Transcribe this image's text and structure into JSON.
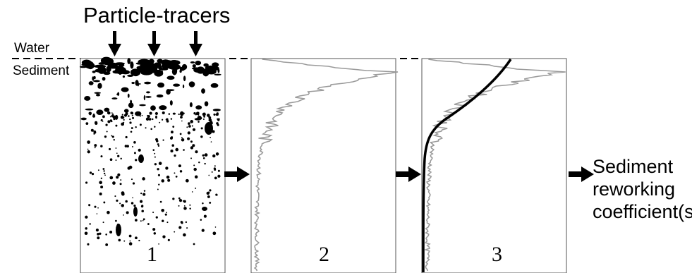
{
  "title": "Particle-tracers",
  "water_label": "Water",
  "sediment_label": "Sediment",
  "panels": [
    {
      "number": "1"
    },
    {
      "number": "2"
    },
    {
      "number": "3"
    }
  ],
  "result_lines": [
    "Sediment",
    "reworking",
    "coefficient(s)"
  ],
  "colors": {
    "ink": "#000000",
    "profile_gray": "#9a9a9a",
    "frame": "#555555"
  },
  "icons": {
    "tracer_arrows": "arrow-down-icon",
    "flow_arrows": "arrow-right-icon"
  }
}
